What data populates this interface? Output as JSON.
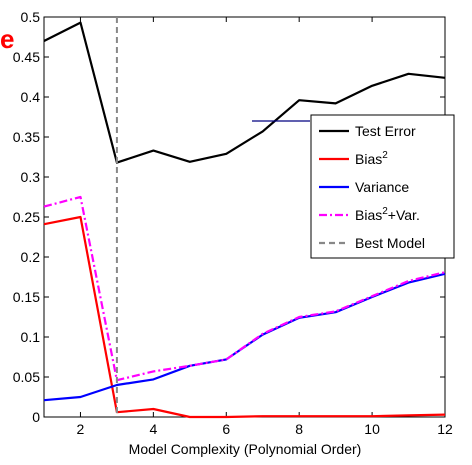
{
  "chart_data": {
    "type": "line",
    "title": "",
    "xlabel": "Model Complexity (Polynomial Order)",
    "ylabel": "",
    "xlim": [
      1,
      12
    ],
    "ylim": [
      0,
      0.5
    ],
    "x_ticks": [
      2,
      4,
      6,
      8,
      10,
      12
    ],
    "y_ticks": [
      0,
      0.05,
      0.1,
      0.15,
      0.2,
      0.25,
      0.3,
      0.35,
      0.4,
      0.45,
      0.5
    ],
    "x": [
      1,
      2,
      3,
      4,
      5,
      6,
      7,
      8,
      9,
      10,
      11,
      12
    ],
    "series": [
      {
        "name": "Test Error",
        "color": "#000000",
        "style": "solid",
        "values": [
          0.47,
          0.493,
          0.318,
          0.333,
          0.319,
          0.329,
          0.357,
          0.396,
          0.392,
          0.414,
          0.429,
          0.424
        ]
      },
      {
        "name": "Bias",
        "name_sup": "2",
        "color": "#ff0000",
        "style": "solid",
        "values": [
          0.241,
          0.25,
          0.006,
          0.01,
          0.0,
          0.0,
          0.001,
          0.001,
          0.001,
          0.001,
          0.002,
          0.003
        ]
      },
      {
        "name": "Variance",
        "color": "#0000ff",
        "style": "solid",
        "values": [
          0.021,
          0.025,
          0.04,
          0.047,
          0.064,
          0.072,
          0.103,
          0.124,
          0.131,
          0.15,
          0.168,
          0.179
        ]
      },
      {
        "name": "Bias",
        "name_sup": "2",
        "name_suffix": "+Var.",
        "color": "#ff00ff",
        "style": "dashdot",
        "values": [
          0.263,
          0.275,
          0.046,
          0.057,
          0.064,
          0.072,
          0.104,
          0.125,
          0.132,
          0.151,
          0.17,
          0.181
        ]
      }
    ],
    "vline": {
      "name": "Best Model",
      "x": 3,
      "color": "#888888",
      "style": "dashed"
    },
    "legend_position": "right",
    "grid": false
  },
  "overlay": {
    "clipped_glyph": "e",
    "clipped_glyph_color": "#ff0000",
    "stray_line_color": "#000080"
  }
}
